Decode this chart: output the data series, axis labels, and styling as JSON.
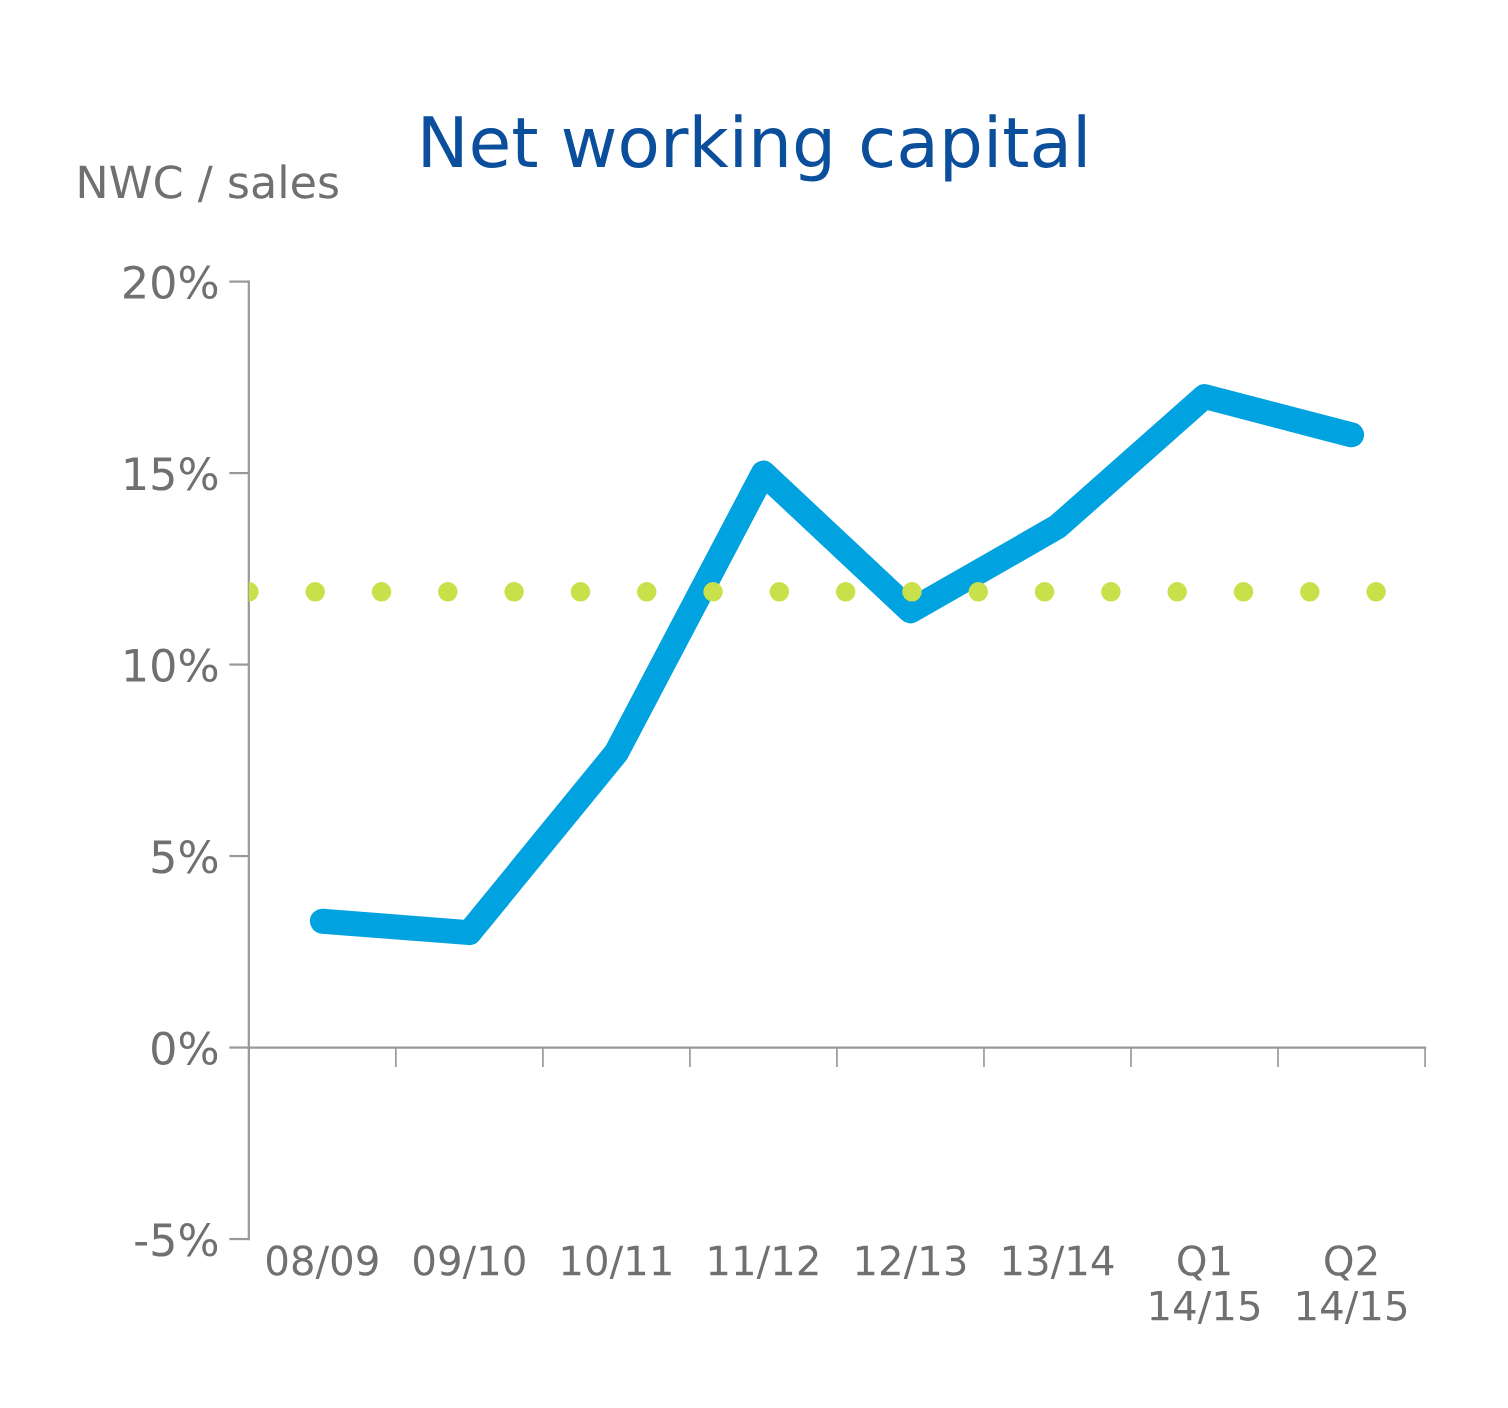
{
  "chart_data": {
    "type": "line",
    "title": "Net working capital",
    "ylabel": "NWC / sales",
    "categories": [
      "08/09",
      "09/10",
      "10/11",
      "11/12",
      "12/13",
      "13/14",
      "Q1\n14/15",
      "Q2\n14/15"
    ],
    "series": [
      {
        "color": "#00a3e0",
        "values": [
          3.3,
          3.0,
          7.7,
          15.0,
          11.4,
          13.6,
          17.0,
          16.0
        ]
      }
    ],
    "ylim": [
      -5,
      20
    ],
    "yticks": [
      {
        "value": -5,
        "label": "-5%"
      },
      {
        "value": 0,
        "label": "0%"
      },
      {
        "value": 5,
        "label": "5%"
      },
      {
        "value": 10,
        "label": "10%"
      },
      {
        "value": 15,
        "label": "15%"
      },
      {
        "value": 20,
        "label": "20%"
      }
    ],
    "ref_lines": [
      {
        "axis": "y",
        "value": 11.9,
        "color": "#c8e04a",
        "line_style": "dotted"
      }
    ],
    "line_style": "solid"
  }
}
